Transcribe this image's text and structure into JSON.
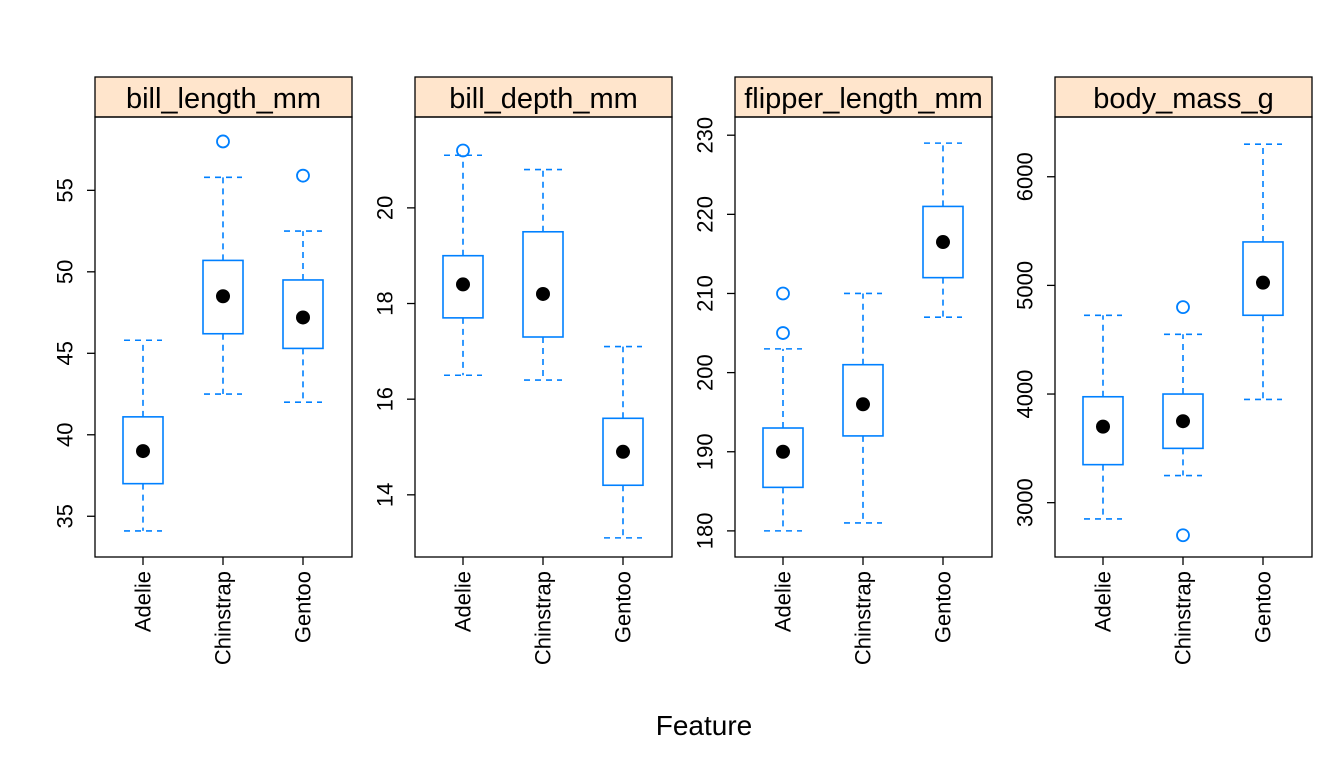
{
  "colors": {
    "box": "#0080FF",
    "median_dot": "#000000",
    "strip_fill": "#FFE5CC",
    "axis": "#000000",
    "background": "#FFFFFF"
  },
  "chart_data": {
    "type": "box",
    "xlabel": "Feature",
    "categories": [
      "Adelie",
      "Chinstrap",
      "Gentoo"
    ],
    "grid": false,
    "legend": "none",
    "panels": [
      {
        "name": "bill_length_mm",
        "ylim": [
          32.5,
          59.5
        ],
        "yticks": [
          35,
          40,
          45,
          50,
          55
        ],
        "boxes": [
          {
            "category": "Adelie",
            "whisker_low": 34.1,
            "q1": 37.0,
            "median": 39.0,
            "q3": 41.1,
            "whisker_high": 45.8,
            "outliers": []
          },
          {
            "category": "Chinstrap",
            "whisker_low": 42.5,
            "q1": 46.2,
            "median": 48.5,
            "q3": 50.7,
            "whisker_high": 55.8,
            "outliers": [
              58.0
            ]
          },
          {
            "category": "Gentoo",
            "whisker_low": 42.0,
            "q1": 45.3,
            "median": 47.2,
            "q3": 49.5,
            "whisker_high": 52.5,
            "outliers": [
              55.9
            ]
          }
        ]
      },
      {
        "name": "bill_depth_mm",
        "ylim": [
          12.7,
          21.9
        ],
        "yticks": [
          14,
          16,
          18,
          20
        ],
        "boxes": [
          {
            "category": "Adelie",
            "whisker_low": 16.5,
            "q1": 17.7,
            "median": 18.4,
            "q3": 19.0,
            "whisker_high": 21.1,
            "outliers": [
              21.2
            ]
          },
          {
            "category": "Chinstrap",
            "whisker_low": 16.4,
            "q1": 17.3,
            "median": 18.2,
            "q3": 19.5,
            "whisker_high": 20.8,
            "outliers": []
          },
          {
            "category": "Gentoo",
            "whisker_low": 13.1,
            "q1": 14.2,
            "median": 14.9,
            "q3": 15.6,
            "whisker_high": 17.1,
            "outliers": []
          }
        ]
      },
      {
        "name": "flipper_length_mm",
        "ylim": [
          176.7,
          232.3
        ],
        "yticks": [
          180,
          190,
          200,
          210,
          220,
          230
        ],
        "boxes": [
          {
            "category": "Adelie",
            "whisker_low": 180,
            "q1": 185.5,
            "median": 190,
            "q3": 193,
            "whisker_high": 203,
            "outliers": [
              205,
              210
            ]
          },
          {
            "category": "Chinstrap",
            "whisker_low": 181,
            "q1": 192,
            "median": 196,
            "q3": 201,
            "whisker_high": 210,
            "outliers": []
          },
          {
            "category": "Gentoo",
            "whisker_low": 207,
            "q1": 212,
            "median": 216.5,
            "q3": 221,
            "whisker_high": 229,
            "outliers": []
          }
        ]
      },
      {
        "name": "body_mass_g",
        "ylim": [
          2500,
          6550
        ],
        "yticks": [
          3000,
          4000,
          5000,
          6000
        ],
        "boxes": [
          {
            "category": "Adelie",
            "whisker_low": 2850,
            "q1": 3350,
            "median": 3700,
            "q3": 3975,
            "whisker_high": 4725,
            "outliers": []
          },
          {
            "category": "Chinstrap",
            "whisker_low": 3250,
            "q1": 3500,
            "median": 3750,
            "q3": 4000,
            "whisker_high": 4550,
            "outliers": [
              2700,
              4800
            ]
          },
          {
            "category": "Gentoo",
            "whisker_low": 3950,
            "q1": 4725,
            "median": 5025,
            "q3": 5400,
            "whisker_high": 6300,
            "outliers": []
          }
        ]
      }
    ]
  }
}
